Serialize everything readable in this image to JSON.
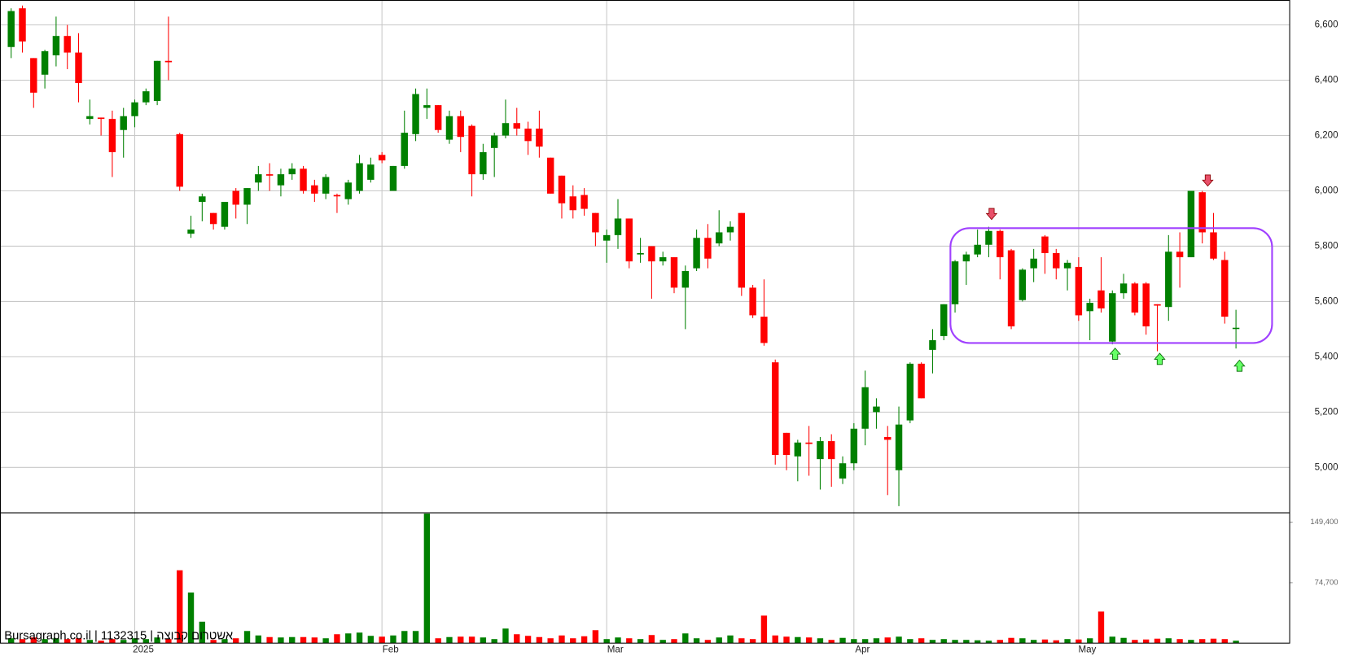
{
  "watermark": "Bursagraph.co.il | 1132315 | אשטרום קבוצה",
  "chart_data": [
    {
      "type": "candlestick",
      "categories": [
        null,
        null,
        null,
        null,
        null,
        null,
        null,
        null,
        null,
        null,
        null,
        "2025",
        null,
        null,
        null,
        null,
        null,
        null,
        null,
        null,
        null,
        null,
        null,
        null,
        null,
        null,
        null,
        null,
        null,
        null,
        null,
        null,
        null,
        "Feb",
        null,
        null,
        null,
        null,
        null,
        null,
        null,
        null,
        null,
        null,
        null,
        null,
        null,
        null,
        null,
        null,
        null,
        null,
        null,
        "Mar",
        null,
        null,
        null,
        null,
        null,
        null,
        null,
        null,
        null,
        null,
        null,
        null,
        null,
        null,
        null,
        null,
        null,
        null,
        null,
        null,
        null,
        "Apr",
        null,
        null,
        null,
        null,
        null,
        null,
        null,
        null,
        null,
        null,
        null,
        null,
        null,
        null,
        null,
        null,
        null,
        null,
        null,
        "May",
        null,
        null,
        null,
        null,
        null,
        null,
        null,
        null,
        null,
        null,
        null,
        null,
        null,
        null
      ],
      "open": [
        6520,
        6660,
        6480,
        6420,
        6490,
        6560,
        6500,
        6260,
        6265,
        6260,
        6220,
        6270,
        6320,
        6325,
        6470,
        6205,
        5845,
        5960,
        5920,
        5870,
        6000,
        5950,
        6030,
        6060,
        6020,
        6060,
        6080,
        6020,
        5990,
        5985,
        5970,
        6000,
        6040,
        6130,
        6000,
        6090,
        6205,
        6300,
        6310,
        6185,
        6270,
        6235,
        6060,
        6155,
        6200,
        6245,
        6225,
        6225,
        6120,
        6055,
        5980,
        5985,
        5920,
        5820,
        5840,
        5900,
        5770,
        5800,
        5745,
        5760,
        5650,
        5720,
        5830,
        5810,
        5850,
        5920,
        5650,
        5545,
        5380,
        5125,
        5040,
        5090,
        5030,
        5095,
        4960,
        5015,
        5140,
        5200,
        5110,
        4990,
        5170,
        5375,
        5425,
        5475,
        5590,
        5745,
        5770,
        5805,
        5855,
        5785,
        5605,
        5720,
        5835,
        5775,
        5720,
        5725,
        5565,
        5640,
        5455,
        5630,
        5665,
        5665,
        5590,
        5580,
        5780,
        5760,
        5995,
        5850,
        5750,
        5505
      ],
      "high": [
        6660,
        6670,
        6480,
        6510,
        6630,
        6600,
        6570,
        6330,
        6265,
        6290,
        6300,
        6330,
        6370,
        6470,
        6630,
        6210,
        5910,
        5990,
        5920,
        5960,
        6010,
        6010,
        6090,
        6100,
        6080,
        6100,
        6090,
        6040,
        6060,
        5990,
        6040,
        6130,
        6120,
        6140,
        6090,
        6290,
        6370,
        6370,
        6310,
        6290,
        6290,
        6240,
        6170,
        6210,
        6330,
        6300,
        6250,
        6290,
        6120,
        6055,
        6020,
        6010,
        5920,
        5860,
        5970,
        5900,
        5830,
        5800,
        5780,
        5760,
        5730,
        5860,
        5880,
        5930,
        5890,
        5920,
        5660,
        5680,
        5390,
        5125,
        5100,
        5150,
        5110,
        5120,
        5040,
        5160,
        5350,
        5250,
        5150,
        5220,
        5380,
        5380,
        5500,
        5590,
        5750,
        5780,
        5860,
        5870,
        5860,
        5790,
        5720,
        5790,
        5840,
        5790,
        5750,
        5760,
        5610,
        5760,
        5640,
        5700,
        5670,
        5670,
        5590,
        5840,
        5850,
        6000,
        6000,
        5920,
        5780,
        5570
      ],
      "low": [
        6480,
        6500,
        6300,
        6370,
        6450,
        6440,
        6320,
        6240,
        6200,
        6050,
        6120,
        6230,
        6310,
        6310,
        6400,
        6000,
        5830,
        5890,
        5860,
        5860,
        5900,
        5880,
        6000,
        6000,
        5980,
        6040,
        5990,
        5960,
        5970,
        5920,
        5950,
        5990,
        6030,
        6100,
        6000,
        6080,
        6180,
        6260,
        6210,
        6170,
        6140,
        5980,
        6040,
        6050,
        6190,
        6200,
        6130,
        6120,
        5990,
        5900,
        5900,
        5910,
        5800,
        5740,
        5790,
        5720,
        5740,
        5610,
        5730,
        5630,
        5500,
        5710,
        5720,
        5800,
        5820,
        5620,
        5540,
        5440,
        5010,
        4990,
        4950,
        4970,
        4920,
        4930,
        4940,
        4990,
        5080,
        5140,
        4900,
        4860,
        5160,
        5250,
        5340,
        5460,
        5560,
        5660,
        5760,
        5760,
        5680,
        5500,
        5600,
        5670,
        5700,
        5680,
        5640,
        5530,
        5460,
        5560,
        5445,
        5610,
        5550,
        5480,
        5420,
        5530,
        5650,
        5760,
        5810,
        5750,
        5520,
        5430
      ],
      "close": [
        6650,
        6540,
        6355,
        6505,
        6560,
        6500,
        6390,
        6270,
        6260,
        6140,
        6270,
        6320,
        6360,
        6470,
        6465,
        6015,
        5860,
        5980,
        5880,
        5960,
        5950,
        6010,
        6060,
        6055,
        6060,
        6080,
        6000,
        5990,
        6050,
        5980,
        6030,
        6100,
        6095,
        6110,
        6090,
        6210,
        6350,
        6310,
        6220,
        6270,
        6195,
        6060,
        6140,
        6200,
        6245,
        6225,
        6180,
        6160,
        5990,
        5955,
        5930,
        5935,
        5850,
        5840,
        5900,
        5745,
        5775,
        5745,
        5760,
        5650,
        5710,
        5830,
        5755,
        5850,
        5870,
        5650,
        5550,
        5450,
        5045,
        5045,
        5090,
        5085,
        5095,
        5030,
        5015,
        5140,
        5290,
        5220,
        5100,
        5155,
        5375,
        5250,
        5460,
        5590,
        5745,
        5770,
        5805,
        5855,
        5760,
        5510,
        5715,
        5755,
        5775,
        5720,
        5740,
        5550,
        5595,
        5575,
        5630,
        5665,
        5560,
        5510,
        5585,
        5780,
        5760,
        6000,
        5850,
        5755,
        5545,
        5505
      ],
      "up_color": "#008000",
      "down_color": "#ff0000",
      "ylim": [
        4836,
        6690
      ],
      "yticks": [
        {
          "value": 5000,
          "label": "5,000"
        },
        {
          "value": 5200,
          "label": "5,200"
        },
        {
          "value": 5400,
          "label": "5,400"
        },
        {
          "value": 5600,
          "label": "5,600"
        },
        {
          "value": 5800,
          "label": "5,800"
        },
        {
          "value": 6000,
          "label": "6,000"
        },
        {
          "value": 6200,
          "label": "6,200"
        },
        {
          "value": 6400,
          "label": "6,400"
        },
        {
          "value": 6600,
          "label": "6,600"
        }
      ],
      "grid": true
    },
    {
      "type": "bar",
      "values": [
        6000,
        5000,
        7000,
        5000,
        6000,
        5000,
        6000,
        4000,
        3000,
        5000,
        4000,
        6000,
        5000,
        7000,
        5000,
        90000,
        62500,
        26500,
        4000,
        5000,
        6000,
        15000,
        9500,
        7500,
        7000,
        7500,
        7500,
        7000,
        6000,
        11000,
        12000,
        13000,
        9000,
        8000,
        9500,
        15000,
        15000,
        160000,
        6000,
        7500,
        8000,
        8000,
        7000,
        5000,
        18000,
        11000,
        9000,
        7500,
        6000,
        9500,
        6000,
        8500,
        16000,
        5000,
        7000,
        6000,
        5000,
        10000,
        4000,
        5000,
        12000,
        6000,
        4000,
        7000,
        9500,
        6000,
        5000,
        34000,
        9500,
        8000,
        7500,
        7000,
        6000,
        4000,
        6500,
        5000,
        5000,
        6000,
        7000,
        8000,
        5000,
        6000,
        4000,
        5000,
        4000,
        4000,
        3500,
        3000,
        4000,
        6500,
        6000,
        4000,
        4500,
        3500,
        5000,
        4500,
        6000,
        39000,
        8000,
        6500,
        4000,
        4500,
        5500,
        6000,
        5000,
        4000,
        5000,
        5500,
        5000,
        3000
      ],
      "up_color": "#008000",
      "down_color": "#ff0000",
      "ylim": [
        0,
        161000
      ],
      "yticks": [
        {
          "value": 74700,
          "label": "74,700"
        },
        {
          "value": 149400,
          "label": "149,400"
        }
      ]
    }
  ]
}
